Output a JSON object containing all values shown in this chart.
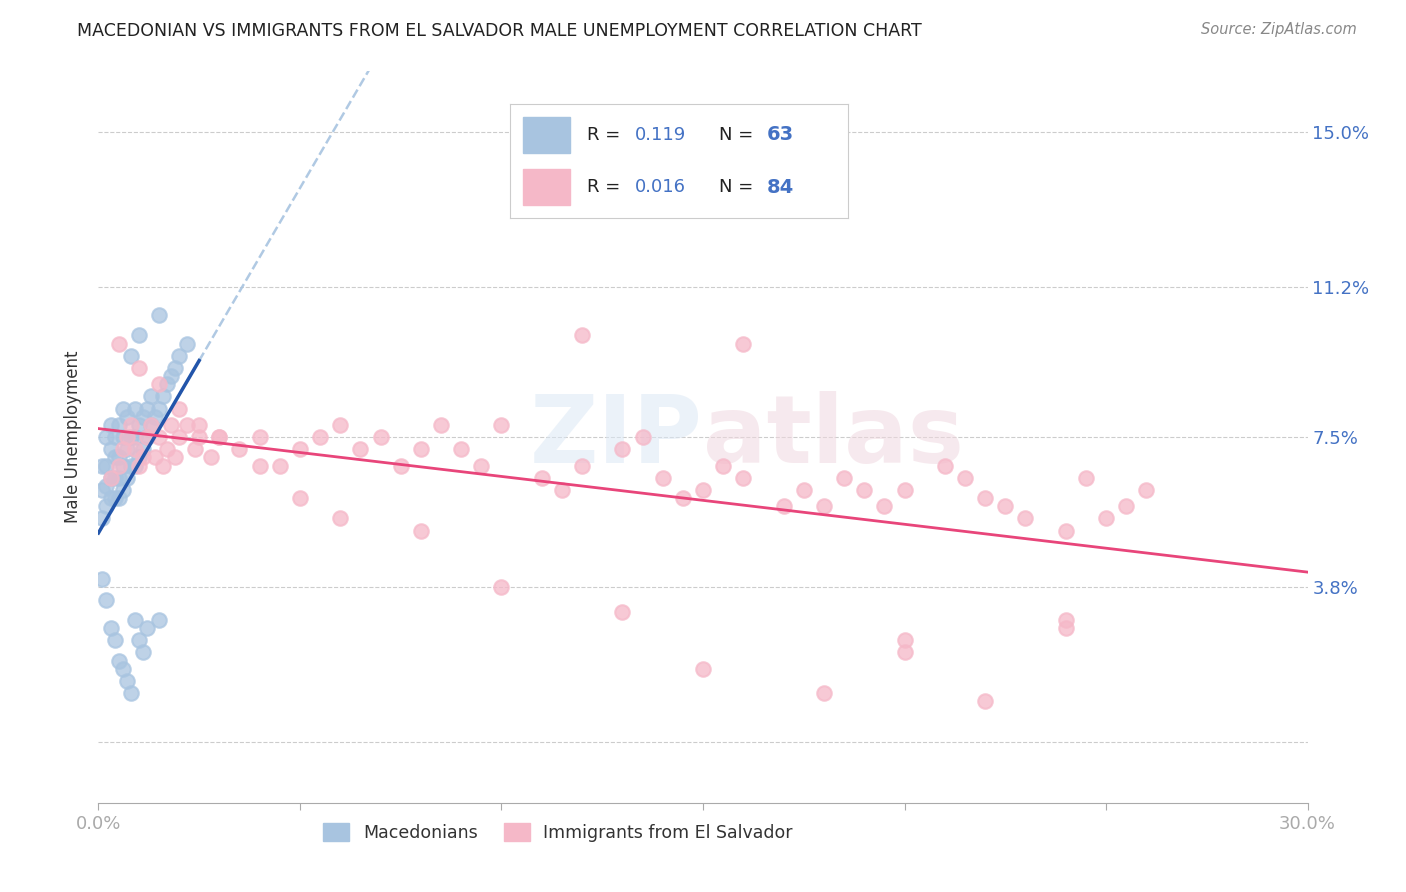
{
  "title": "MACEDONIAN VS IMMIGRANTS FROM EL SALVADOR MALE UNEMPLOYMENT CORRELATION CHART",
  "source": "Source: ZipAtlas.com",
  "ylabel": "Male Unemployment",
  "xlim": [
    0.0,
    0.3
  ],
  "ylim": [
    0.0,
    0.16
  ],
  "ytick_vals": [
    0.0,
    0.038,
    0.075,
    0.112,
    0.15
  ],
  "ytick_labels": [
    "",
    "3.8%",
    "7.5%",
    "11.2%",
    "15.0%"
  ],
  "xtick_vals": [
    0.0,
    0.05,
    0.1,
    0.15,
    0.2,
    0.25,
    0.3
  ],
  "xtick_labels": [
    "0.0%",
    "",
    "",
    "",
    "",
    "",
    "30.0%"
  ],
  "macedonian_color": "#a8c4e0",
  "el_salvador_color": "#f5b8c8",
  "macedonian_line_color": "#2255aa",
  "el_salvador_line_color": "#e8457a",
  "macedonian_dash_color": "#a8c4e0",
  "watermark": "ZIPatlas",
  "legend_macedonian_R": "0.119",
  "legend_macedonian_N": "63",
  "legend_el_salvador_R": "0.016",
  "legend_el_salvador_N": "84",
  "mac_x": [
    0.001,
    0.001,
    0.001,
    0.002,
    0.002,
    0.002,
    0.002,
    0.003,
    0.003,
    0.003,
    0.003,
    0.004,
    0.004,
    0.004,
    0.004,
    0.005,
    0.005,
    0.005,
    0.005,
    0.006,
    0.006,
    0.006,
    0.006,
    0.007,
    0.007,
    0.007,
    0.008,
    0.008,
    0.008,
    0.009,
    0.009,
    0.009,
    0.01,
    0.01,
    0.01,
    0.011,
    0.011,
    0.012,
    0.012,
    0.013,
    0.013,
    0.014,
    0.015,
    0.015,
    0.016,
    0.017,
    0.018,
    0.019,
    0.02,
    0.022,
    0.001,
    0.002,
    0.003,
    0.004,
    0.005,
    0.006,
    0.007,
    0.008,
    0.009,
    0.01,
    0.011,
    0.012,
    0.015
  ],
  "mac_y": [
    0.062,
    0.068,
    0.055,
    0.058,
    0.063,
    0.068,
    0.075,
    0.06,
    0.065,
    0.072,
    0.078,
    0.06,
    0.065,
    0.07,
    0.075,
    0.06,
    0.065,
    0.07,
    0.078,
    0.062,
    0.068,
    0.075,
    0.082,
    0.065,
    0.072,
    0.08,
    0.068,
    0.075,
    0.095,
    0.068,
    0.075,
    0.082,
    0.07,
    0.078,
    0.1,
    0.072,
    0.08,
    0.075,
    0.082,
    0.078,
    0.085,
    0.08,
    0.082,
    0.105,
    0.085,
    0.088,
    0.09,
    0.092,
    0.095,
    0.098,
    0.04,
    0.035,
    0.028,
    0.025,
    0.02,
    0.018,
    0.015,
    0.012,
    0.03,
    0.025,
    0.022,
    0.028,
    0.03
  ],
  "elsal_x": [
    0.003,
    0.005,
    0.006,
    0.007,
    0.008,
    0.009,
    0.01,
    0.011,
    0.012,
    0.013,
    0.014,
    0.015,
    0.016,
    0.017,
    0.018,
    0.019,
    0.02,
    0.022,
    0.024,
    0.025,
    0.028,
    0.03,
    0.035,
    0.04,
    0.045,
    0.05,
    0.055,
    0.06,
    0.065,
    0.07,
    0.075,
    0.08,
    0.085,
    0.09,
    0.095,
    0.1,
    0.11,
    0.115,
    0.12,
    0.13,
    0.135,
    0.14,
    0.145,
    0.15,
    0.155,
    0.16,
    0.17,
    0.175,
    0.18,
    0.185,
    0.19,
    0.195,
    0.2,
    0.21,
    0.215,
    0.22,
    0.225,
    0.23,
    0.24,
    0.245,
    0.25,
    0.255,
    0.26,
    0.005,
    0.01,
    0.015,
    0.02,
    0.025,
    0.03,
    0.04,
    0.05,
    0.06,
    0.08,
    0.1,
    0.13,
    0.15,
    0.18,
    0.2,
    0.22,
    0.24,
    0.12,
    0.16,
    0.2,
    0.24
  ],
  "elsal_y": [
    0.065,
    0.068,
    0.072,
    0.075,
    0.078,
    0.072,
    0.068,
    0.07,
    0.075,
    0.078,
    0.07,
    0.075,
    0.068,
    0.072,
    0.078,
    0.07,
    0.075,
    0.078,
    0.072,
    0.075,
    0.07,
    0.075,
    0.072,
    0.075,
    0.068,
    0.072,
    0.075,
    0.078,
    0.072,
    0.075,
    0.068,
    0.072,
    0.078,
    0.072,
    0.068,
    0.078,
    0.065,
    0.062,
    0.068,
    0.072,
    0.075,
    0.065,
    0.06,
    0.062,
    0.068,
    0.065,
    0.058,
    0.062,
    0.058,
    0.065,
    0.062,
    0.058,
    0.062,
    0.068,
    0.065,
    0.06,
    0.058,
    0.055,
    0.052,
    0.065,
    0.055,
    0.058,
    0.062,
    0.098,
    0.092,
    0.088,
    0.082,
    0.078,
    0.075,
    0.068,
    0.06,
    0.055,
    0.052,
    0.038,
    0.032,
    0.018,
    0.012,
    0.025,
    0.01,
    0.03,
    0.1,
    0.098,
    0.022,
    0.028
  ]
}
